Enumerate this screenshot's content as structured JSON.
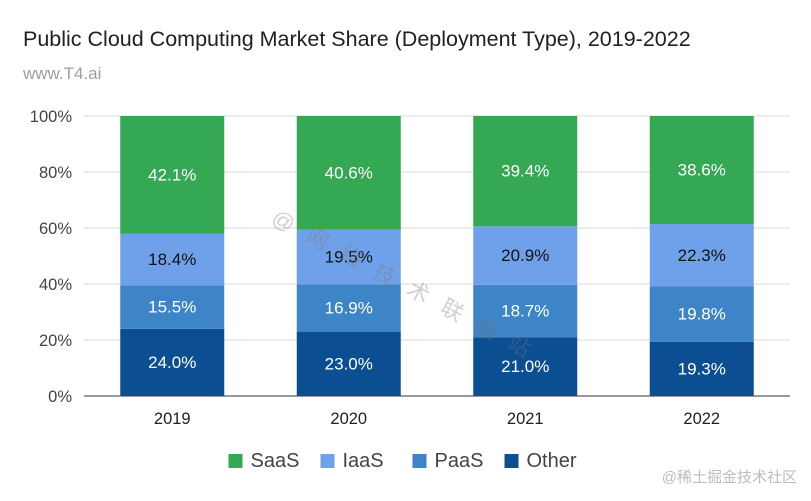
{
  "header": {
    "title": "Public Cloud Computing Market Share (Deployment Type), 2019-2022",
    "subtitle": "www.T4.ai"
  },
  "watermark": "@ 网 络 技 术 联 盟 站",
  "source_tag": "@稀土掘金技术社区",
  "chart_data": {
    "type": "bar",
    "stacked": true,
    "title": "Public Cloud Computing Market Share (Deployment Type), 2019-2022",
    "categories": [
      "2019",
      "2020",
      "2021",
      "2022"
    ],
    "ylim": [
      0,
      100
    ],
    "yticks": [
      0,
      20,
      40,
      60,
      80,
      100
    ],
    "ytick_labels": [
      "0%",
      "20%",
      "40%",
      "60%",
      "80%",
      "100%"
    ],
    "grid": true,
    "legend_position": "bottom",
    "series": [
      {
        "name": "Other",
        "values": [
          24.0,
          23.0,
          21.0,
          19.3
        ],
        "labels": [
          "24.0%",
          "23.0%",
          "21.0%",
          "19.3%"
        ],
        "color": "#0b4f92",
        "label_color": "#ffffff"
      },
      {
        "name": "PaaS",
        "values": [
          15.5,
          16.9,
          18.7,
          19.8
        ],
        "labels": [
          "15.5%",
          "16.9%",
          "18.7%",
          "19.8%"
        ],
        "color": "#3d85c6",
        "label_color": "#ffffff"
      },
      {
        "name": "IaaS",
        "values": [
          18.4,
          19.5,
          20.9,
          22.3
        ],
        "labels": [
          "18.4%",
          "19.5%",
          "20.9%",
          "22.3%"
        ],
        "color": "#6fa1ea",
        "label_color": "#111111"
      },
      {
        "name": "SaaS",
        "values": [
          42.1,
          40.6,
          39.4,
          38.6
        ],
        "labels": [
          "42.1%",
          "40.6%",
          "39.4%",
          "38.6%"
        ],
        "color": "#34a853",
        "label_color": "#ffffff"
      }
    ],
    "legend_order": [
      "SaaS",
      "IaaS",
      "PaaS",
      "Other"
    ]
  }
}
